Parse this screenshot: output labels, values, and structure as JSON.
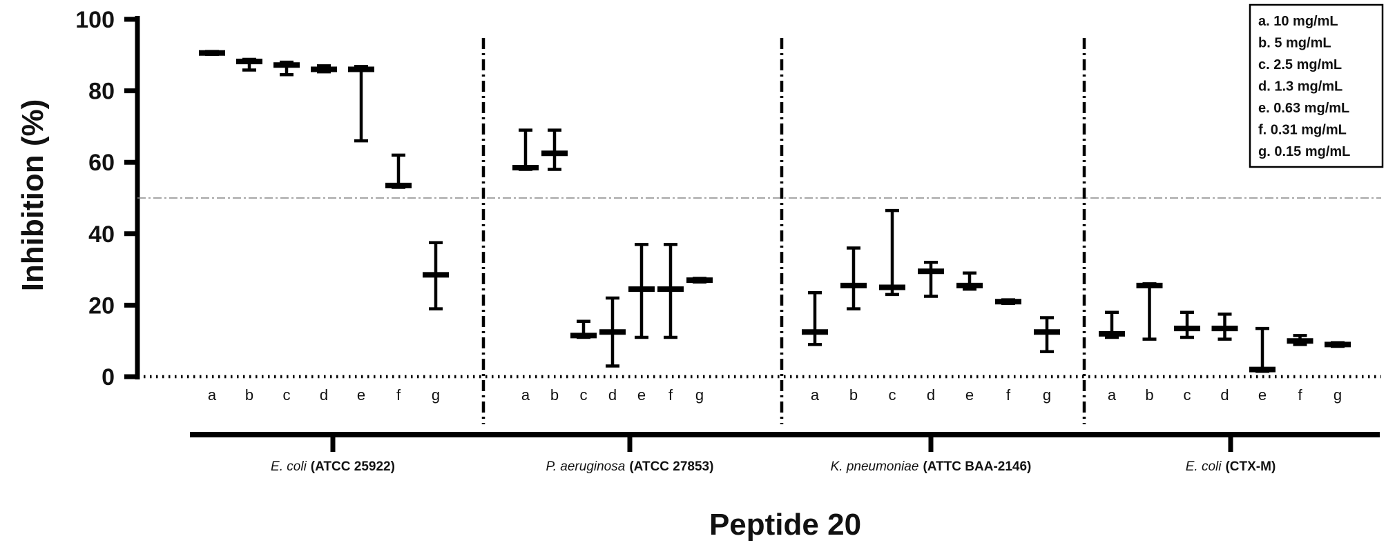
{
  "chart_data": {
    "type": "box",
    "title": "",
    "ylabel": "Inhibition (%)",
    "xlabel": "Peptide 20",
    "ylim": [
      0,
      100
    ],
    "yticks": [
      "0",
      "20",
      "40",
      "60",
      "80",
      "100"
    ],
    "threshold_line": 50,
    "legend_position": "top-right",
    "legend": [
      "a.  10 mg/mL",
      "b.  5 mg/mL",
      "c.  2.5 mg/mL",
      "d.  1.3 mg/mL",
      "e.  0.63 mg/mL",
      "f.  0.31 mg/mL",
      "g.  0.15 mg/mL"
    ],
    "groups": [
      {
        "label_italic": "E. coli",
        "label_bold": "(ATCC 25922)",
        "categories": [
          "a",
          "b",
          "c",
          "d",
          "e",
          "f",
          "g"
        ],
        "min": [
          90.2,
          85.8,
          84.5,
          85.3,
          66,
          53,
          19
        ],
        "median": [
          90.6,
          88.2,
          87.2,
          86,
          86,
          53.5,
          28.5
        ],
        "max": [
          91,
          88.8,
          88,
          87,
          86.8,
          62,
          37.5
        ]
      },
      {
        "label_italic": "P. aeruginosa",
        "label_bold": "(ATCC 27853)",
        "categories": [
          "a",
          "b",
          "c",
          "d",
          "e",
          "f",
          "g"
        ],
        "min": [
          58,
          58,
          11,
          3,
          11,
          11,
          26.5
        ],
        "median": [
          58.5,
          62.5,
          11.5,
          12.5,
          24.5,
          24.5,
          27
        ],
        "max": [
          69,
          69,
          15.5,
          22,
          37,
          37,
          27.5
        ]
      },
      {
        "label_italic": "K. pneumoniae",
        "label_bold": "(ATTC BAA-2146)",
        "categories": [
          "a",
          "b",
          "c",
          "d",
          "e",
          "f",
          "g"
        ],
        "min": [
          9,
          19,
          23,
          22.5,
          24.5,
          20.5,
          7
        ],
        "median": [
          12.5,
          25.5,
          25,
          29.5,
          25.5,
          21,
          12.5
        ],
        "max": [
          23.5,
          36,
          46.5,
          32,
          29,
          21.5,
          16.5
        ]
      },
      {
        "label_italic": "E. coli",
        "label_bold": "(CTX-M)",
        "categories": [
          "a",
          "b",
          "c",
          "d",
          "e",
          "f",
          "g"
        ],
        "min": [
          11,
          10.5,
          11,
          10.5,
          1.5,
          9,
          8.5
        ],
        "median": [
          12,
          25.5,
          13.5,
          13.5,
          2,
          10,
          9
        ],
        "max": [
          18,
          26,
          18,
          17.5,
          13.5,
          11.5,
          9.5
        ]
      }
    ]
  }
}
